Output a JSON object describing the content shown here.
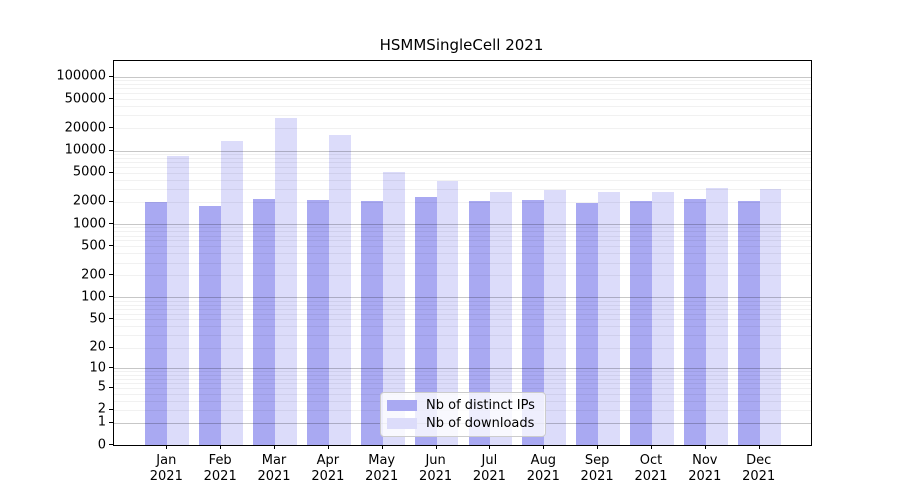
{
  "chart_data": {
    "type": "bar",
    "title": "HSMMSingleCell 2021",
    "categories": [
      "Jan",
      "Feb",
      "Mar",
      "Apr",
      "May",
      "Jun",
      "Jul",
      "Aug",
      "Sep",
      "Oct",
      "Nov",
      "Dec"
    ],
    "year_label": "2021",
    "series": [
      {
        "name": "Nb of distinct IPs",
        "color": "#a9a9f2",
        "values": [
          2000,
          1750,
          2200,
          2100,
          2050,
          2330,
          2030,
          2100,
          1950,
          2090,
          2220,
          2090
        ]
      },
      {
        "name": "Nb of downloads",
        "color": "#dcdcfa",
        "values": [
          8550,
          13400,
          27700,
          16100,
          5120,
          3800,
          2750,
          2900,
          2750,
          2760,
          3100,
          3030
        ]
      }
    ],
    "y_axis": {
      "scale": "log10(1+v)",
      "tick_values": [
        0,
        1,
        2,
        5,
        10,
        20,
        50,
        100,
        200,
        500,
        1000,
        2000,
        5000,
        10000,
        20000,
        50000,
        100000
      ],
      "major_gridlines": [
        1,
        10,
        100,
        1000,
        10000,
        100000
      ],
      "top_value": 164000
    },
    "x_axis": {
      "tick_label_format": "month over year"
    },
    "legend": {
      "position": "inside-bottom-center"
    },
    "grid": true,
    "colors": {
      "axis": "#000000",
      "text": "#000000",
      "distinct_ips_bar": "#a9a9f2",
      "downloads_bar": "#dcdcfa"
    }
  }
}
